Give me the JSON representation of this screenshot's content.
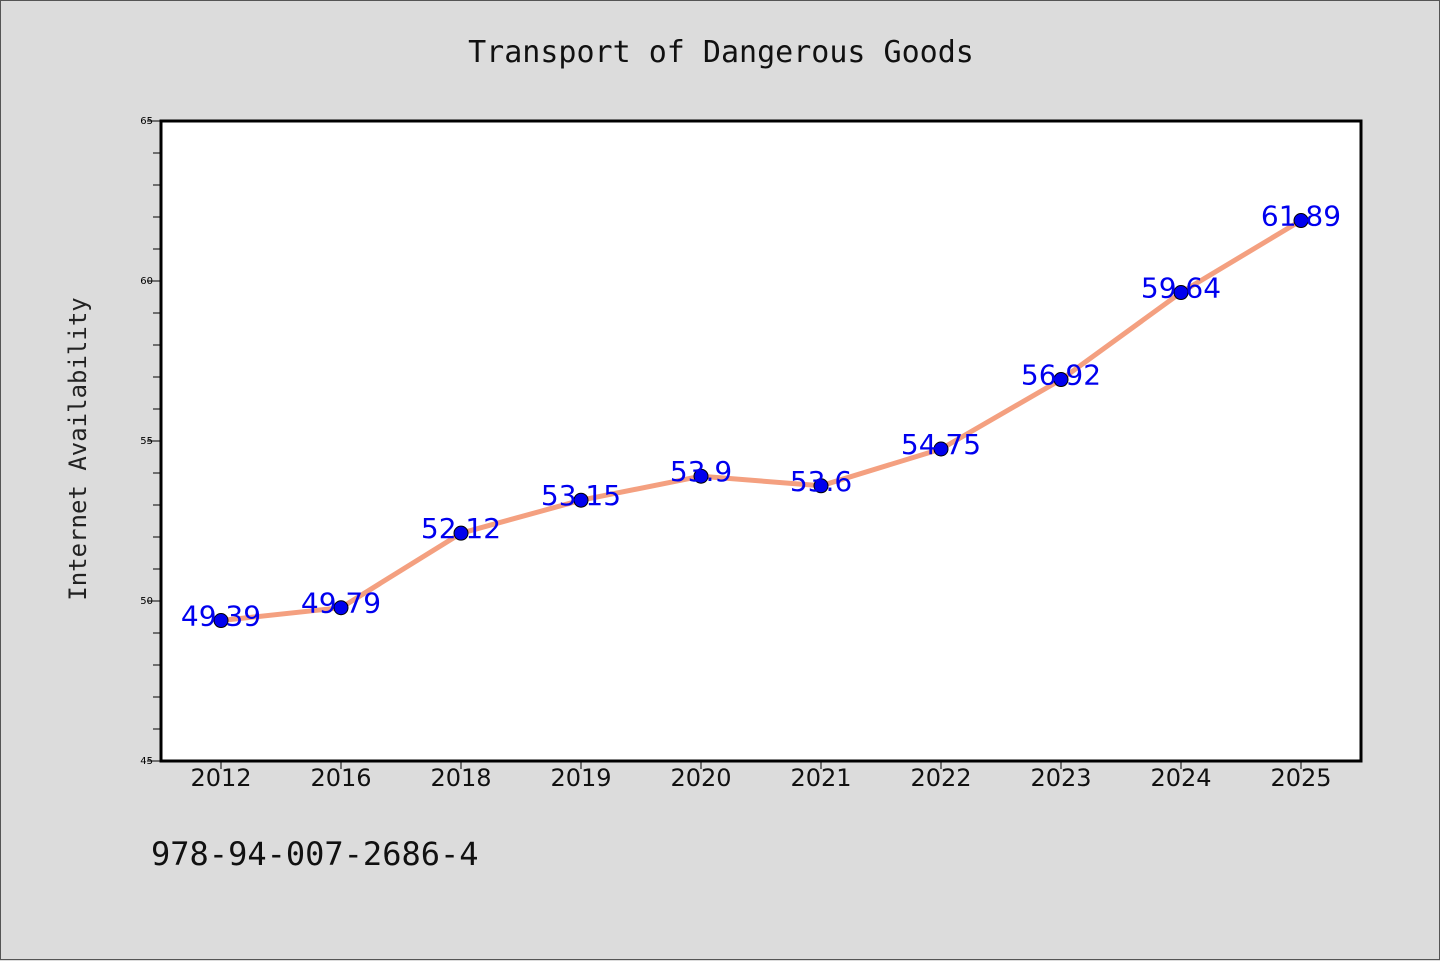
{
  "chart_data": {
    "type": "line",
    "title": "Transport of Dangerous Goods",
    "xlabel": "",
    "ylabel": "Internet Availability",
    "categories": [
      "2012",
      "2016",
      "2018",
      "2019",
      "2020",
      "2021",
      "2022",
      "2023",
      "2024",
      "2025"
    ],
    "series": [
      {
        "values": [
          49.39,
          49.79,
          52.12,
          53.15,
          53.9,
          53.6,
          54.75,
          56.92,
          59.64,
          61.89
        ],
        "data_labels": [
          "49.39",
          "49.79",
          "52.12",
          "53.15",
          "53.9",
          "53.6",
          "54.75",
          "56.92",
          "59.64",
          "61.89"
        ],
        "line_color": "#f4a080",
        "marker_color": "#0000ee",
        "label_color": "#0000ee"
      }
    ],
    "ylim": [
      45,
      65
    ],
    "yticks": [
      "45",
      "50",
      "55",
      "60",
      "65"
    ],
    "grid": false,
    "legend": "none"
  },
  "annotations": {
    "isbn": "978-94-007-2686-4"
  },
  "colors": {
    "background": "#dcdcdc",
    "plot_area": "#ffffff",
    "axis": "#000000"
  }
}
